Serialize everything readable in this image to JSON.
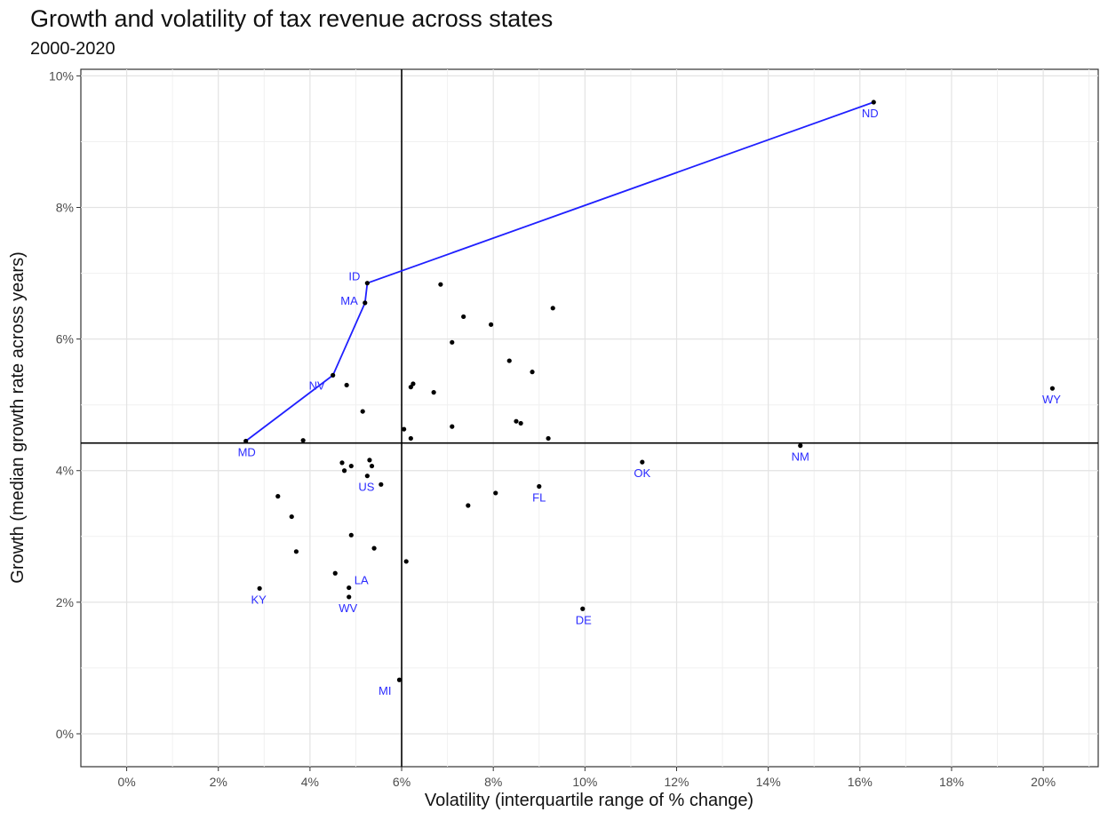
{
  "chart_data": {
    "type": "scatter",
    "title": "Growth and volatility of tax revenue across states",
    "subtitle": "2000-2020",
    "xlabel": "Volatility (interquartile range of % change)",
    "ylabel": "Growth (median growth rate across years)",
    "xlim": [
      -1.0,
      21.2
    ],
    "ylim": [
      -0.5,
      10.1
    ],
    "x_ticks": [
      0,
      2,
      4,
      6,
      8,
      10,
      12,
      14,
      16,
      18,
      20
    ],
    "x_tick_labels": [
      "0%",
      "2%",
      "4%",
      "6%",
      "8%",
      "10%",
      "12%",
      "14%",
      "16%",
      "18%",
      "20%"
    ],
    "y_ticks": [
      0,
      2,
      4,
      6,
      8,
      10
    ],
    "y_tick_labels": [
      "0%",
      "2%",
      "4%",
      "6%",
      "8%",
      "10%"
    ],
    "grid": true,
    "reference_lines": {
      "x": 6.0,
      "y": 4.42
    },
    "frontier_color": "#2020ff",
    "label_color": "#2b2bff",
    "frontier": [
      {
        "x": 2.6,
        "y": 4.45
      },
      {
        "x": 4.5,
        "y": 5.45
      },
      {
        "x": 5.2,
        "y": 6.55
      },
      {
        "x": 5.25,
        "y": 6.85
      },
      {
        "x": 16.3,
        "y": 9.6
      }
    ],
    "points": [
      {
        "x": 16.3,
        "y": 9.6,
        "label": "ND"
      },
      {
        "x": 5.25,
        "y": 6.85,
        "label": "ID"
      },
      {
        "x": 5.2,
        "y": 6.55,
        "label": "MA"
      },
      {
        "x": 4.5,
        "y": 5.45,
        "label": "NV"
      },
      {
        "x": 2.6,
        "y": 4.45,
        "label": "MD"
      },
      {
        "x": 20.2,
        "y": 5.25,
        "label": "WY"
      },
      {
        "x": 14.7,
        "y": 4.38,
        "label": "NM"
      },
      {
        "x": 11.25,
        "y": 4.13,
        "label": "OK"
      },
      {
        "x": 9.0,
        "y": 3.76,
        "label": "FL"
      },
      {
        "x": 9.95,
        "y": 1.9,
        "label": "DE"
      },
      {
        "x": 5.25,
        "y": 3.92,
        "label": "US"
      },
      {
        "x": 4.85,
        "y": 2.22,
        "label": "LA"
      },
      {
        "x": 4.85,
        "y": 2.08,
        "label": "WV"
      },
      {
        "x": 2.9,
        "y": 2.21,
        "label": "KY"
      },
      {
        "x": 5.95,
        "y": 0.82,
        "label": "MI"
      },
      {
        "x": 6.85,
        "y": 6.83,
        "label": ""
      },
      {
        "x": 9.3,
        "y": 6.47,
        "label": ""
      },
      {
        "x": 7.35,
        "y": 6.34,
        "label": ""
      },
      {
        "x": 7.95,
        "y": 6.22,
        "label": ""
      },
      {
        "x": 7.1,
        "y": 5.95,
        "label": ""
      },
      {
        "x": 8.35,
        "y": 5.67,
        "label": ""
      },
      {
        "x": 8.85,
        "y": 5.5,
        "label": ""
      },
      {
        "x": 4.8,
        "y": 5.3,
        "label": ""
      },
      {
        "x": 6.25,
        "y": 5.32,
        "label": ""
      },
      {
        "x": 6.2,
        "y": 5.27,
        "label": ""
      },
      {
        "x": 6.7,
        "y": 5.19,
        "label": ""
      },
      {
        "x": 5.15,
        "y": 4.9,
        "label": ""
      },
      {
        "x": 8.5,
        "y": 4.75,
        "label": ""
      },
      {
        "x": 8.6,
        "y": 4.72,
        "label": ""
      },
      {
        "x": 7.1,
        "y": 4.67,
        "label": ""
      },
      {
        "x": 6.05,
        "y": 4.63,
        "label": ""
      },
      {
        "x": 6.2,
        "y": 4.49,
        "label": ""
      },
      {
        "x": 9.2,
        "y": 4.49,
        "label": ""
      },
      {
        "x": 3.85,
        "y": 4.46,
        "label": ""
      },
      {
        "x": 5.3,
        "y": 4.16,
        "label": ""
      },
      {
        "x": 4.7,
        "y": 4.12,
        "label": ""
      },
      {
        "x": 4.9,
        "y": 4.07,
        "label": ""
      },
      {
        "x": 5.35,
        "y": 4.07,
        "label": ""
      },
      {
        "x": 4.75,
        "y": 4.0,
        "label": ""
      },
      {
        "x": 5.55,
        "y": 3.79,
        "label": ""
      },
      {
        "x": 8.05,
        "y": 3.66,
        "label": ""
      },
      {
        "x": 3.3,
        "y": 3.61,
        "label": ""
      },
      {
        "x": 7.45,
        "y": 3.47,
        "label": ""
      },
      {
        "x": 3.6,
        "y": 3.3,
        "label": ""
      },
      {
        "x": 4.9,
        "y": 3.02,
        "label": ""
      },
      {
        "x": 5.4,
        "y": 2.82,
        "label": ""
      },
      {
        "x": 3.7,
        "y": 2.77,
        "label": ""
      },
      {
        "x": 6.1,
        "y": 2.62,
        "label": ""
      },
      {
        "x": 4.55,
        "y": 2.44,
        "label": ""
      }
    ]
  }
}
